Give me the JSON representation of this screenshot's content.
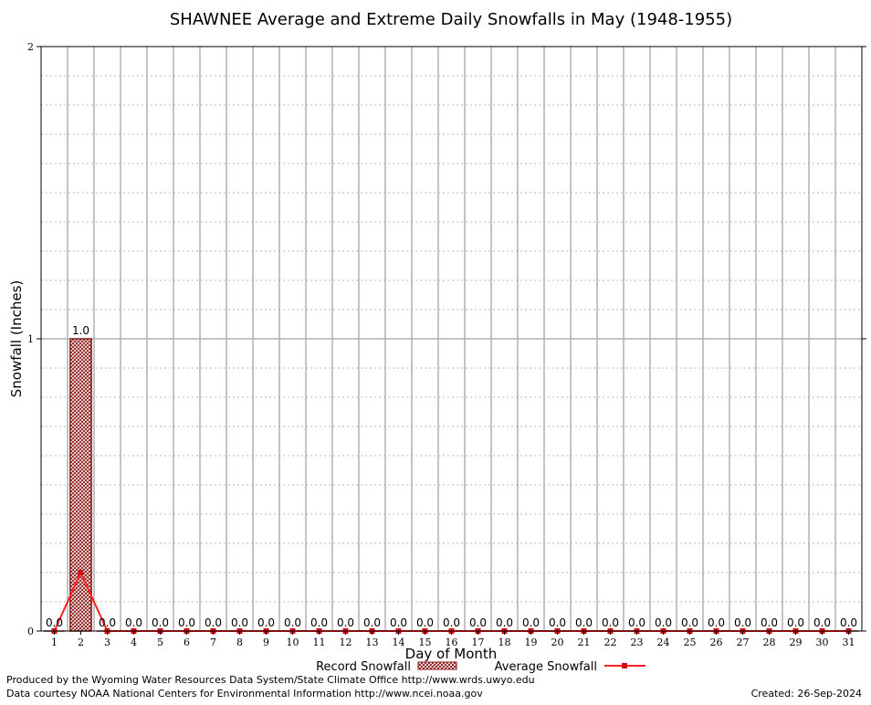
{
  "chart_data": {
    "type": "bar",
    "title": "SHAWNEE Average and Extreme Daily Snowfalls in May (1948-1955)",
    "xlabel": "Day of Month",
    "ylabel": "Snowfall (Inches)",
    "ylim": [
      0,
      2
    ],
    "y_ticks": [
      "0",
      "1",
      "2"
    ],
    "categories": [
      "1",
      "2",
      "3",
      "4",
      "5",
      "6",
      "7",
      "8",
      "9",
      "10",
      "11",
      "12",
      "13",
      "14",
      "15",
      "16",
      "17",
      "18",
      "19",
      "20",
      "21",
      "22",
      "23",
      "24",
      "25",
      "26",
      "27",
      "28",
      "29",
      "30",
      "31"
    ],
    "series": [
      {
        "name": "Record Snowfall",
        "type": "bar",
        "color": "#b22222",
        "values": [
          0,
          1,
          0,
          0,
          0,
          0,
          0,
          0,
          0,
          0,
          0,
          0,
          0,
          0,
          0,
          0,
          0,
          0,
          0,
          0,
          0,
          0,
          0,
          0,
          0,
          0,
          0,
          0,
          0,
          0,
          0
        ],
        "labels": [
          "0.0",
          "1.0",
          "0.0",
          "0.0",
          "0.0",
          "0.0",
          "0.0",
          "0.0",
          "0.0",
          "0.0",
          "0.0",
          "0.0",
          "0.0",
          "0.0",
          "0.0",
          "0.0",
          "0.0",
          "0.0",
          "0.0",
          "0.0",
          "0.0",
          "0.0",
          "0.0",
          "0.0",
          "0.0",
          "0.0",
          "0.0",
          "0.0",
          "0.0",
          "0.0",
          "0.0"
        ]
      },
      {
        "name": "Average Snowfall",
        "type": "line",
        "color": "#ff2020",
        "values": [
          0,
          0.2,
          0,
          0,
          0,
          0,
          0,
          0,
          0,
          0,
          0,
          0,
          0,
          0,
          0,
          0,
          0,
          0,
          0,
          0,
          0,
          0,
          0,
          0,
          0,
          0,
          0,
          0,
          0,
          0,
          0
        ]
      }
    ],
    "grid": true,
    "legend": "bottom-center"
  },
  "footer": {
    "produced_by": "Produced by the Wyoming Water Resources Data System/State Climate Office http://www.wrds.uwyo.edu",
    "courtesy": "Data courtesy NOAA National Centers for Environmental Information http://www.ncei.noaa.gov",
    "created": "Created:  26-Sep-2024"
  }
}
